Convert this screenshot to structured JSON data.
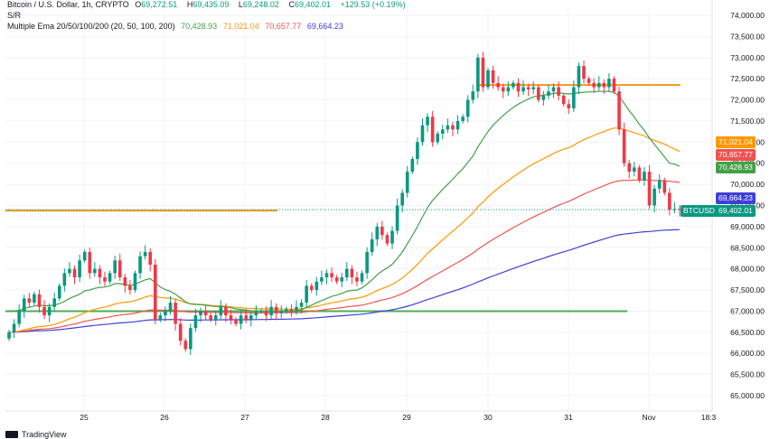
{
  "header": {
    "title": "Bitcoin / U.S. Dollar, 1h, CRYPTO",
    "ohlc": {
      "o_label": "O",
      "o": "69,272.51",
      "h_label": "H",
      "h": "69,435.09",
      "l_label": "L",
      "l": "69,248.02",
      "c_label": "C",
      "c": "69,402.01",
      "change": "+129.53 (+0.19%)"
    },
    "sr_label": "S/R",
    "ema_label": "Multiple Ema 20/50/100/200 (20, 50, 100, 200)",
    "ema_values": [
      "70,428.93",
      "71,021.04",
      "70,657.77",
      "69,664.23"
    ]
  },
  "colors": {
    "ema20": "#43a047",
    "ema50": "#ff9800",
    "ema100": "#ef5350",
    "ema200": "#3f3fd8",
    "up": "#089981",
    "down": "#f23645",
    "sr_orange": "#ef9a1a",
    "sr_green": "#4caf50"
  },
  "price_tags": {
    "ema50": "71,021.04",
    "ema100": "70,657.77",
    "ema20": "70,428.93",
    "ema200": "69,664.23",
    "symbol": "BTCUSD",
    "last": "69,402.01"
  },
  "footer": {
    "brand": "TradingView"
  },
  "chart_data": {
    "type": "candlestick",
    "y_axis_ticks": [
      "74,000.00",
      "73,500.00",
      "73,000.00",
      "72,500.00",
      "72,000.00",
      "71,500.00",
      "71,000.00",
      "70,500.00",
      "70,000.00",
      "69,500.00",
      "69,000.00",
      "68,500.00",
      "68,000.00",
      "67,500.00",
      "67,000.00",
      "66,500.00",
      "66,000.00",
      "65,500.00",
      "65,000.00"
    ],
    "x_axis_ticks": [
      "25",
      "26",
      "27",
      "28",
      "29",
      "30",
      "31",
      "Nov",
      "18:3"
    ],
    "ylim": [
      64900,
      74150
    ],
    "sr_levels": [
      {
        "price": 69380,
        "color": "orange",
        "from": 0,
        "to": 0.385
      },
      {
        "price": 67000,
        "color": "green",
        "from": 0,
        "to": 0.88
      },
      {
        "price": 72350,
        "color": "orange",
        "from": 0.67,
        "to": 0.955
      }
    ],
    "closes": [
      66500,
      66700,
      67000,
      67300,
      67200,
      67400,
      67100,
      66900,
      67100,
      67300,
      67600,
      67900,
      68000,
      67800,
      68200,
      68400,
      67900,
      68000,
      67800,
      67700,
      67900,
      68200,
      67800,
      67600,
      67500,
      67900,
      68300,
      68400,
      68100,
      66800,
      66900,
      67000,
      67200,
      66700,
      66300,
      66100,
      66600,
      66900,
      67000,
      66900,
      66800,
      66900,
      67100,
      66900,
      66800,
      66700,
      66900,
      66800,
      66900,
      67000,
      67000,
      66900,
      67100,
      66950,
      67000,
      67050,
      67000,
      67100,
      67200,
      67600,
      67500,
      67700,
      67800,
      67900,
      67800,
      67700,
      67800,
      68000,
      67800,
      67700,
      67900,
      68400,
      68700,
      69000,
      68800,
      68600,
      68900,
      69500,
      69800,
      70300,
      70600,
      71000,
      71400,
      71600,
      71000,
      71200,
      71300,
      71400,
      71300,
      71500,
      71600,
      72000,
      72200,
      73000,
      72300,
      72700,
      72400,
      72300,
      72200,
      72300,
      72400,
      72200,
      72300,
      72250,
      72300,
      72000,
      72100,
      72200,
      72300,
      72100,
      71900,
      71800,
      72300,
      72800,
      72500,
      72400,
      72300,
      72400,
      72300,
      72500,
      72200,
      71300,
      70500,
      70300,
      70400,
      70100,
      70300,
      69500,
      69900,
      70100,
      69800,
      69400,
      69420,
      69402
    ],
    "ema20": [
      67000,
      67000,
      67020,
      67060,
      67090,
      67120,
      67140,
      67130,
      67130,
      67140,
      67180,
      67230,
      67300,
      67350,
      67400,
      67480,
      67500,
      67540,
      67560,
      67570,
      67600,
      67650,
      67650,
      67630,
      67610,
      67640,
      67690,
      67740,
      67770,
      67670,
      67570,
      67510,
      67470,
      67400,
      67310,
      67220,
      67170,
      67160,
      67150,
      67140,
      67120,
      67110,
      67110,
      67100,
      67080,
      67050,
      67040,
      67020,
      67010,
      67000,
      67000,
      66990,
      67000,
      66990,
      66990,
      67000,
      67000,
      67010,
      67030,
      67090,
      67140,
      67200,
      67250,
      67300,
      67350,
      67380,
      67420,
      67470,
      67490,
      67500,
      67550,
      67640,
      67740,
      67860,
      67950,
      68020,
      68110,
      68250,
      68400,
      68590,
      68790,
      69000,
      69230,
      69450,
      69620,
      69750,
      69880,
      70000,
      70120,
      70250,
      70370,
      70520,
      70670,
      70890,
      71070,
      71250,
      71400,
      71520,
      71630,
      71730,
      71820,
      71900,
      71960,
      72020,
      72070,
      72090,
      72110,
      72130,
      72150,
      72170,
      72150,
      72140,
      72150,
      72170,
      72180,
      72190,
      72190,
      72200,
      72200,
      72200,
      72180,
      72080,
      71920,
      71740,
      71600,
      71420,
      71280,
      71100,
      70950,
      70800,
      70650,
      70500,
      70480,
      70428
    ]
  }
}
